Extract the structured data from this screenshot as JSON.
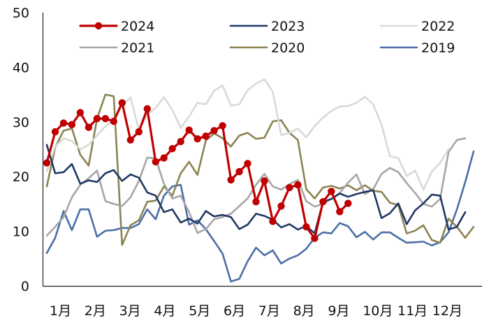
{
  "chart_data": {
    "type": "line",
    "title": "",
    "xlabel": "",
    "ylabel": "",
    "ylim": [
      0,
      50
    ],
    "y_ticks": [
      "0",
      "10",
      "20",
      "30",
      "40",
      "50"
    ],
    "x_ticks": [
      "1月",
      "2月",
      "3月",
      "4月",
      "5月",
      "6月",
      "7月",
      "8月",
      "9月",
      "10月",
      "11月",
      "12月"
    ],
    "x_domain_weeks": 52,
    "grid": false,
    "legend_position": "top",
    "series": [
      {
        "name": "2024",
        "color": "#c00000",
        "markers": true,
        "points": [
          [
            0,
            22.5
          ],
          [
            1,
            28.2
          ],
          [
            2,
            29.8
          ],
          [
            3,
            29.5
          ],
          [
            4,
            31.7
          ],
          [
            5,
            29.0
          ],
          [
            6,
            30.6
          ],
          [
            7,
            30.6
          ],
          [
            8,
            30.1
          ],
          [
            9,
            33.5
          ],
          [
            10,
            26.7
          ],
          [
            11,
            28.2
          ],
          [
            12,
            32.4
          ],
          [
            13,
            22.7
          ],
          [
            14,
            23.4
          ],
          [
            15,
            25.1
          ],
          [
            16,
            26.4
          ],
          [
            17,
            28.5
          ],
          [
            18,
            26.9
          ],
          [
            19,
            27.4
          ],
          [
            20,
            28.4
          ],
          [
            21,
            29.3
          ],
          [
            22,
            19.4
          ],
          [
            23,
            20.9
          ],
          [
            24,
            22.4
          ],
          [
            25,
            15.4
          ],
          [
            26,
            19.2
          ],
          [
            27,
            11.8
          ],
          [
            28,
            14.6
          ],
          [
            29,
            18.0
          ],
          [
            30,
            18.5
          ],
          [
            31,
            10.8
          ],
          [
            32,
            8.7
          ],
          [
            33,
            15.4
          ],
          [
            34,
            17.3
          ],
          [
            35,
            13.6
          ],
          [
            36,
            15.1
          ]
        ]
      },
      {
        "name": "2023",
        "color": "#1f3864",
        "markers": false,
        "points": [
          [
            0,
            25.8
          ],
          [
            1,
            20.6
          ],
          [
            2,
            20.8
          ],
          [
            3,
            22.3
          ],
          [
            4,
            18.7
          ],
          [
            5,
            19.3
          ],
          [
            6,
            19.0
          ],
          [
            7,
            20.6
          ],
          [
            8,
            21.2
          ],
          [
            9,
            19.2
          ],
          [
            10,
            20.4
          ],
          [
            11,
            19.8
          ],
          [
            12,
            17.1
          ],
          [
            13,
            16.5
          ],
          [
            14,
            13.5
          ],
          [
            15,
            14.0
          ],
          [
            16,
            11.6
          ],
          [
            17,
            12.3
          ],
          [
            18,
            11.4
          ],
          [
            19,
            13.7
          ],
          [
            20,
            12.7
          ],
          [
            21,
            13.0
          ],
          [
            22,
            12.6
          ],
          [
            23,
            10.4
          ],
          [
            24,
            11.2
          ],
          [
            25,
            13.2
          ],
          [
            26,
            12.8
          ],
          [
            27,
            12.1
          ],
          [
            28,
            10.7
          ],
          [
            29,
            11.3
          ],
          [
            30,
            10.3
          ],
          [
            31,
            11.0
          ],
          [
            32,
            9.6
          ],
          [
            33,
            15.4
          ],
          [
            34,
            15.9
          ],
          [
            35,
            16.9
          ],
          [
            36,
            16.3
          ],
          [
            37,
            16.8
          ],
          [
            38,
            17.2
          ],
          [
            39,
            17.5
          ],
          [
            40,
            12.4
          ],
          [
            41,
            13.3
          ],
          [
            42,
            15.1
          ],
          [
            43,
            11.3
          ],
          [
            44,
            13.8
          ],
          [
            45,
            15.1
          ],
          [
            46,
            16.7
          ],
          [
            47,
            16.5
          ],
          [
            48,
            10.3
          ],
          [
            49,
            10.8
          ],
          [
            50,
            13.5
          ]
        ]
      },
      {
        "name": "2022",
        "color": "#d9d9d9",
        "markers": false,
        "points": [
          [
            0,
            21.0
          ],
          [
            1,
            25.5
          ],
          [
            2,
            27.0
          ],
          [
            3,
            26.5
          ],
          [
            4,
            25.0
          ],
          [
            5,
            25.8
          ],
          [
            6,
            27.5
          ],
          [
            7,
            29.2
          ],
          [
            8,
            30.3
          ],
          [
            9,
            33.0
          ],
          [
            10,
            34.5
          ],
          [
            11,
            28.6
          ],
          [
            12,
            31.3
          ],
          [
            13,
            32.6
          ],
          [
            14,
            34.5
          ],
          [
            15,
            32.2
          ],
          [
            16,
            28.9
          ],
          [
            17,
            31.0
          ],
          [
            18,
            33.5
          ],
          [
            19,
            33.2
          ],
          [
            20,
            35.7
          ],
          [
            21,
            36.7
          ],
          [
            22,
            33.0
          ],
          [
            23,
            33.2
          ],
          [
            24,
            35.8
          ],
          [
            25,
            37.0
          ],
          [
            26,
            37.8
          ],
          [
            27,
            35.5
          ],
          [
            28,
            27.6
          ],
          [
            29,
            28.0
          ],
          [
            30,
            28.8
          ],
          [
            31,
            27.2
          ],
          [
            32,
            29.2
          ],
          [
            33,
            30.8
          ],
          [
            34,
            32.0
          ],
          [
            35,
            32.8
          ],
          [
            36,
            32.9
          ],
          [
            37,
            33.5
          ],
          [
            38,
            34.6
          ],
          [
            39,
            33.2
          ],
          [
            40,
            29.5
          ],
          [
            41,
            23.7
          ],
          [
            42,
            23.4
          ],
          [
            43,
            20.1
          ],
          [
            44,
            21.1
          ],
          [
            45,
            17.6
          ],
          [
            46,
            20.9
          ],
          [
            47,
            22.5
          ],
          [
            48,
            25.0
          ]
        ]
      },
      {
        "name": "2021",
        "color": "#a6a6a6",
        "markers": false,
        "points": [
          [
            0,
            9.2
          ],
          [
            1,
            10.8
          ],
          [
            2,
            12.6
          ],
          [
            3,
            16.2
          ],
          [
            4,
            18.5
          ],
          [
            5,
            19.7
          ],
          [
            6,
            21.1
          ],
          [
            7,
            15.5
          ],
          [
            8,
            15.0
          ],
          [
            9,
            14.6
          ],
          [
            10,
            16.2
          ],
          [
            11,
            19.2
          ],
          [
            12,
            23.5
          ],
          [
            13,
            23.3
          ],
          [
            14,
            18.7
          ],
          [
            15,
            16.0
          ],
          [
            16,
            16.5
          ],
          [
            17,
            13.5
          ],
          [
            18,
            9.7
          ],
          [
            19,
            10.4
          ],
          [
            20,
            12.2
          ],
          [
            21,
            12.6
          ],
          [
            22,
            13.2
          ],
          [
            23,
            14.6
          ],
          [
            24,
            16.0
          ],
          [
            25,
            18.5
          ],
          [
            26,
            20.5
          ],
          [
            27,
            18.2
          ],
          [
            28,
            17.6
          ],
          [
            29,
            18.6
          ],
          [
            30,
            19.4
          ],
          [
            31,
            15.5
          ],
          [
            32,
            14.5
          ],
          [
            33,
            15.0
          ],
          [
            34,
            15.9
          ],
          [
            35,
            17.0
          ],
          [
            36,
            18.9
          ],
          [
            37,
            20.4
          ],
          [
            38,
            16.8
          ],
          [
            39,
            17.7
          ],
          [
            40,
            20.5
          ],
          [
            41,
            21.6
          ],
          [
            42,
            20.8
          ],
          [
            43,
            18.8
          ],
          [
            44,
            17.0
          ],
          [
            45,
            15.0
          ],
          [
            46,
            14.5
          ],
          [
            47,
            15.9
          ],
          [
            48,
            24.5
          ],
          [
            49,
            26.7
          ],
          [
            50,
            27.0
          ]
        ]
      },
      {
        "name": "2020",
        "color": "#8b8351",
        "markers": false,
        "points": [
          [
            0,
            18.2
          ],
          [
            1,
            25.3
          ],
          [
            2,
            28.4
          ],
          [
            3,
            28.8
          ],
          [
            4,
            24.0
          ],
          [
            5,
            22.0
          ],
          [
            6,
            30.6
          ],
          [
            7,
            35.0
          ],
          [
            8,
            34.7
          ],
          [
            9,
            7.5
          ],
          [
            10,
            11.1
          ],
          [
            11,
            12.0
          ],
          [
            12,
            15.4
          ],
          [
            13,
            15.6
          ],
          [
            14,
            18.2
          ],
          [
            15,
            16.5
          ],
          [
            16,
            20.6
          ],
          [
            17,
            22.7
          ],
          [
            18,
            20.3
          ],
          [
            19,
            26.6
          ],
          [
            20,
            27.9
          ],
          [
            21,
            27.0
          ],
          [
            22,
            25.5
          ],
          [
            23,
            27.5
          ],
          [
            24,
            28.0
          ],
          [
            25,
            26.9
          ],
          [
            26,
            27.1
          ],
          [
            27,
            30.1
          ],
          [
            28,
            30.3
          ],
          [
            29,
            28.0
          ],
          [
            30,
            26.7
          ],
          [
            31,
            17.7
          ],
          [
            32,
            16.0
          ],
          [
            33,
            18.0
          ],
          [
            34,
            18.3
          ],
          [
            35,
            17.8
          ],
          [
            36,
            18.4
          ],
          [
            37,
            17.5
          ],
          [
            38,
            18.4
          ],
          [
            39,
            17.4
          ],
          [
            40,
            17.2
          ],
          [
            41,
            15.2
          ],
          [
            42,
            14.8
          ],
          [
            43,
            9.6
          ],
          [
            44,
            10.1
          ],
          [
            45,
            11.1
          ],
          [
            46,
            8.4
          ],
          [
            47,
            7.9
          ],
          [
            48,
            12.3
          ],
          [
            49,
            10.8
          ],
          [
            50,
            8.8
          ],
          [
            51,
            10.8
          ]
        ]
      },
      {
        "name": "2019",
        "color": "#4a6fa5",
        "markers": false,
        "points": [
          [
            0,
            6.0
          ],
          [
            1,
            8.8
          ],
          [
            2,
            13.7
          ],
          [
            3,
            10.2
          ],
          [
            4,
            14.0
          ],
          [
            5,
            14.0
          ],
          [
            6,
            9.0
          ],
          [
            7,
            10.1
          ],
          [
            8,
            10.2
          ],
          [
            9,
            10.6
          ],
          [
            10,
            10.6
          ],
          [
            11,
            11.3
          ],
          [
            12,
            14.0
          ],
          [
            13,
            12.2
          ],
          [
            14,
            16.5
          ],
          [
            15,
            18.2
          ],
          [
            16,
            18.5
          ],
          [
            17,
            11.2
          ],
          [
            18,
            12.0
          ],
          [
            19,
            10.4
          ],
          [
            20,
            8.2
          ],
          [
            21,
            5.9
          ],
          [
            22,
            0.8
          ],
          [
            23,
            1.3
          ],
          [
            24,
            4.5
          ],
          [
            25,
            7.0
          ],
          [
            26,
            5.6
          ],
          [
            27,
            6.5
          ],
          [
            28,
            4.1
          ],
          [
            29,
            5.0
          ],
          [
            30,
            5.6
          ],
          [
            31,
            6.8
          ],
          [
            32,
            8.8
          ],
          [
            33,
            9.8
          ],
          [
            34,
            9.6
          ],
          [
            35,
            11.5
          ],
          [
            36,
            10.9
          ],
          [
            37,
            8.9
          ],
          [
            38,
            9.9
          ],
          [
            39,
            8.5
          ],
          [
            40,
            9.8
          ],
          [
            41,
            9.8
          ],
          [
            42,
            8.8
          ],
          [
            43,
            7.9
          ],
          [
            44,
            8.0
          ],
          [
            45,
            8.1
          ],
          [
            46,
            7.4
          ],
          [
            47,
            8.0
          ],
          [
            48,
            9.8
          ],
          [
            49,
            14.0
          ],
          [
            50,
            19.0
          ],
          [
            51,
            24.6
          ]
        ]
      }
    ]
  }
}
